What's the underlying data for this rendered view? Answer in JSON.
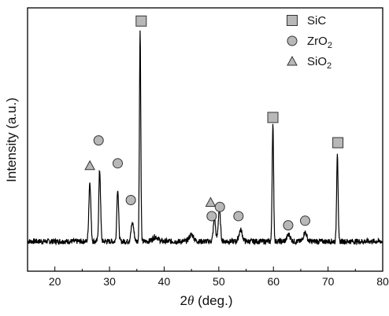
{
  "chart_data": {
    "type": "line",
    "xlabel_prefix": "2",
    "xlabel_symbol": "θ",
    "xlabel_suffix": " (deg.)",
    "ylabel": "Intensity (a.u.)",
    "xlim": [
      15,
      80
    ],
    "ylim": [
      0,
      100
    ],
    "x_ticks": [
      20,
      30,
      40,
      50,
      60,
      70,
      80
    ],
    "grid": false,
    "y_tick_labels": false,
    "legend_placement": "top-right",
    "line_color": "#000000",
    "marker_fill": "#b8b8b8",
    "marker_stroke": "#333333",
    "legend": [
      {
        "marker": "square",
        "text": "SiC",
        "sub": ""
      },
      {
        "marker": "circle",
        "text": "ZrO",
        "sub": "2"
      },
      {
        "marker": "triangle",
        "text": "SiO",
        "sub": "2"
      }
    ],
    "series": [
      {
        "baseline": 1,
        "peaks": [
          {
            "x": 26.4,
            "y": 26,
            "w": 0.18
          },
          {
            "x": 28.2,
            "y": 31,
            "w": 0.16
          },
          {
            "x": 31.5,
            "y": 23,
            "w": 0.16
          },
          {
            "x": 34.2,
            "y": 8,
            "w": 0.25
          },
          {
            "x": 35.6,
            "y": 92,
            "w": 0.12
          },
          {
            "x": 38.4,
            "y": 2,
            "w": 0.5
          },
          {
            "x": 45.0,
            "y": 3,
            "w": 0.4
          },
          {
            "x": 49.2,
            "y": 10,
            "w": 0.2
          },
          {
            "x": 50.1,
            "y": 14,
            "w": 0.2
          },
          {
            "x": 54.0,
            "y": 5,
            "w": 0.3
          },
          {
            "x": 59.9,
            "y": 51,
            "w": 0.13
          },
          {
            "x": 62.8,
            "y": 3,
            "w": 0.3
          },
          {
            "x": 65.8,
            "y": 4,
            "w": 0.3
          },
          {
            "x": 71.7,
            "y": 39,
            "w": 0.13
          }
        ]
      }
    ],
    "peak_markers": [
      {
        "phase": "SiO2",
        "x": 26.4,
        "y": 34
      },
      {
        "phase": "ZrO2",
        "x": 28.0,
        "y": 45
      },
      {
        "phase": "ZrO2",
        "x": 31.5,
        "y": 35
      },
      {
        "phase": "ZrO2",
        "x": 33.9,
        "y": 19
      },
      {
        "phase": "SiC",
        "x": 35.8,
        "y": 97
      },
      {
        "phase": "SiO2",
        "x": 48.5,
        "y": 18
      },
      {
        "phase": "ZrO2",
        "x": 48.7,
        "y": 12
      },
      {
        "phase": "ZrO2",
        "x": 50.2,
        "y": 16
      },
      {
        "phase": "ZrO2",
        "x": 53.6,
        "y": 12
      },
      {
        "phase": "SiC",
        "x": 59.9,
        "y": 55
      },
      {
        "phase": "ZrO2",
        "x": 62.7,
        "y": 8
      },
      {
        "phase": "ZrO2",
        "x": 65.8,
        "y": 10
      },
      {
        "phase": "SiC",
        "x": 71.8,
        "y": 44
      }
    ]
  }
}
